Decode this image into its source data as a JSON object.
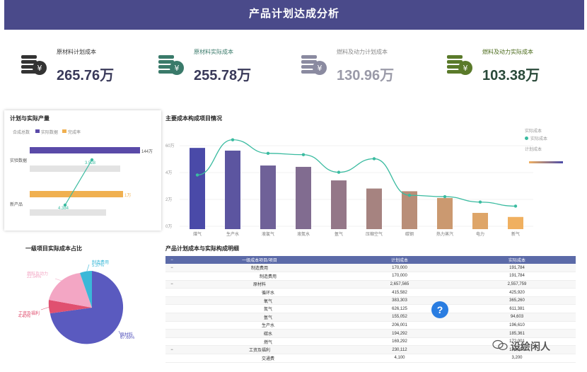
{
  "header": {
    "title": "产品计划达成分析"
  },
  "kpis": [
    {
      "label": "原材料计划成本",
      "value": "265.76万",
      "icon": "money-stack-icon",
      "icon_color": "#333333",
      "label_color": "#333333",
      "value_color": "#3a3a5a"
    },
    {
      "label": "原材料实际成本",
      "value": "255.78万",
      "icon": "money-stack-icon",
      "icon_color": "#3a7a6a",
      "label_color": "#3a7a6a",
      "value_color": "#3a3a5a"
    },
    {
      "label": "燃料及动力计划成本",
      "value": "130.96万",
      "icon": "money-stack-icon",
      "icon_color": "#8a8aa0",
      "label_color": "#888888",
      "value_color": "#9a9aa8"
    },
    {
      "label": "燃料及动力实际成本",
      "value": "103.38万",
      "icon": "money-stack-icon",
      "icon_color": "#5a7a2a",
      "label_color": "#4a6a1a",
      "value_color": "#2a4a3a"
    }
  ],
  "plan_panel": {
    "title": "计划与实际产量",
    "legend": [
      "合成总数",
      "实际数据",
      "完成率"
    ],
    "rows": [
      {
        "label": "实验数据",
        "plan_value": "144万",
        "rate": "3.528"
      },
      {
        "label": "新产品",
        "plan_value": "1万",
        "rate": "4.384"
      }
    ]
  },
  "pie_panel": {
    "title": "一级项目实际成本占比",
    "labels": [
      {
        "name": "制造费用",
        "pct": "5.37%"
      },
      {
        "name": "燃料及动力",
        "pct": "22.54%"
      },
      {
        "name": "工资及福利",
        "pct": "4.40%"
      },
      {
        "name": "原材料",
        "pct": "67.69%"
      }
    ]
  },
  "chart_data": {
    "type": "bar",
    "title": "主要成本构成项目情况",
    "categories": [
      "煤气",
      "生产水",
      "液氯气",
      "液氮水",
      "氩气",
      "压缩空气",
      "碳钢",
      "热力蒸汽",
      "电力",
      "新气"
    ],
    "series": [
      {
        "name": "计划成本",
        "values": [
          60,
          58,
          47,
          46,
          36,
          30,
          28,
          23,
          12,
          9
        ]
      },
      {
        "name": "实际成本",
        "values": [
          40,
          66,
          56,
          55,
          42,
          52,
          25,
          24,
          20,
          17
        ]
      }
    ],
    "ytick_labels": [
      "60万",
      "4万",
      "2万",
      "0万"
    ],
    "legend_title": "实际成本",
    "legend_entries": [
      "实际成本",
      "计划成本"
    ]
  },
  "detail_table": {
    "title": "产品计划成本与实际构成明细",
    "headers": [
      "一级成本项目/项目",
      "计划成本",
      "实际成本"
    ],
    "rows": [
      {
        "toggle": "−",
        "name": "制造费用",
        "plan": "170,000",
        "actual": "191,784"
      },
      {
        "toggle": "",
        "name": "制造费用",
        "plan": "170,000",
        "actual": "191,784"
      },
      {
        "toggle": "−",
        "name": "原材料",
        "plan": "2,657,565",
        "actual": "2,557,759"
      },
      {
        "toggle": "",
        "name": "循环水",
        "plan": "415,582",
        "actual": "425,920"
      },
      {
        "toggle": "",
        "name": "氧气",
        "plan": "383,303",
        "actual": "365,260"
      },
      {
        "toggle": "",
        "name": "氮气",
        "plan": "626,125",
        "actual": "611,381"
      },
      {
        "toggle": "",
        "name": "氩气",
        "plan": "155,052",
        "actual": "94,603"
      },
      {
        "toggle": "",
        "name": "生产水",
        "plan": "206,001",
        "actual": "196,610"
      },
      {
        "toggle": "",
        "name": "碳水",
        "plan": "194,292",
        "actual": "185,361"
      },
      {
        "toggle": "",
        "name": "燃气",
        "plan": "169,292",
        "actual": "172,001"
      },
      {
        "toggle": "−",
        "name": "工资及福利",
        "plan": "230,112",
        "actual": "174,088"
      },
      {
        "toggle": "",
        "name": "交通费",
        "plan": "4,100",
        "actual": "3,200"
      }
    ]
  },
  "help": {
    "label": "?"
  },
  "watermark": {
    "text": "设绘闲人"
  },
  "colors": {
    "header_bg": "#4a4a8a",
    "bar_gradient_start": "#4a4aa8",
    "bar_gradient_end": "#f0b060",
    "line_color": "#3abba0",
    "pie_blue": "#5a5abf",
    "pie_pink": "#f3a6c4",
    "pie_red": "#e05070",
    "pie_cyan": "#3ab8d8"
  }
}
